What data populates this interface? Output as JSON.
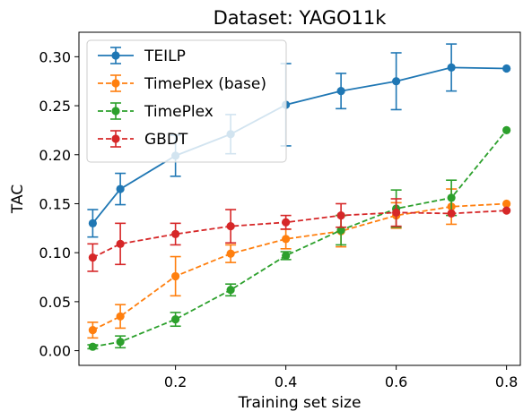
{
  "chart_data": {
    "type": "line",
    "title": "Dataset: YAGO11k",
    "xlabel": "Training set size",
    "ylabel": "TAC",
    "xlim": [
      0.025,
      0.825
    ],
    "ylim": [
      -0.015,
      0.325
    ],
    "xticks": [
      0.2,
      0.4,
      0.6,
      0.8
    ],
    "xtick_labels": [
      "0.2",
      "0.4",
      "0.6",
      "0.8"
    ],
    "yticks": [
      0.0,
      0.05,
      0.1,
      0.15,
      0.2,
      0.25,
      0.3
    ],
    "ytick_labels": [
      "0.00",
      "0.05",
      "0.10",
      "0.15",
      "0.20",
      "0.25",
      "0.30"
    ],
    "grid": false,
    "legend_position": "top-left",
    "x": [
      0.05,
      0.1,
      0.2,
      0.3,
      0.4,
      0.5,
      0.6,
      0.7,
      0.8
    ],
    "series": [
      {
        "name": "TEILP",
        "color": "#1f77b4",
        "dashed": false,
        "values": [
          0.13,
          0.165,
          0.199,
          0.221,
          0.251,
          0.265,
          0.275,
          0.289,
          0.288
        ],
        "errors": [
          0.014,
          0.016,
          0.021,
          0.02,
          0.042,
          0.018,
          0.029,
          0.024,
          0.0
        ]
      },
      {
        "name": "TimePlex (base)",
        "color": "#ff7f0e",
        "dashed": true,
        "values": [
          0.021,
          0.035,
          0.076,
          0.099,
          0.114,
          0.122,
          0.138,
          0.147,
          0.15
        ],
        "errors": [
          0.008,
          0.012,
          0.02,
          0.009,
          0.01,
          0.016,
          0.013,
          0.018,
          0.0
        ]
      },
      {
        "name": "TimePlex",
        "color": "#2ca02c",
        "dashed": true,
        "values": [
          0.004,
          0.009,
          0.032,
          0.062,
          0.097,
          0.123,
          0.145,
          0.156,
          0.225
        ],
        "errors": [
          0.002,
          0.006,
          0.007,
          0.006,
          0.004,
          0.015,
          0.019,
          0.018,
          0.0
        ]
      },
      {
        "name": "GBDT",
        "color": "#d62728",
        "dashed": true,
        "values": [
          0.095,
          0.109,
          0.119,
          0.127,
          0.131,
          0.138,
          0.141,
          0.14,
          0.143
        ],
        "errors": [
          0.014,
          0.021,
          0.011,
          0.017,
          0.007,
          0.012,
          0.014,
          0.0,
          0.0
        ]
      }
    ]
  }
}
